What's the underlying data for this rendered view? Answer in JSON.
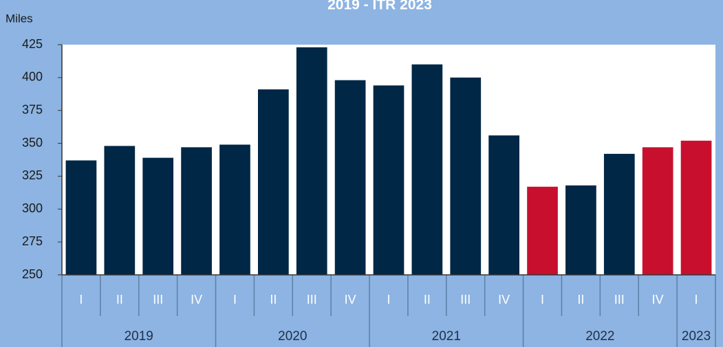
{
  "chart_data": {
    "type": "bar",
    "title": "2019 - ITR 2023",
    "y_label": "Miles",
    "categories": [
      "I",
      "II",
      "III",
      "IV",
      "I",
      "II",
      "III",
      "IV",
      "I",
      "II",
      "III",
      "IV",
      "I",
      "II",
      "III",
      "IV",
      "I"
    ],
    "years": [
      "2019",
      null,
      null,
      null,
      "2020",
      null,
      null,
      null,
      "2021",
      null,
      null,
      null,
      "2022",
      null,
      null,
      null,
      "2023"
    ],
    "values": [
      337,
      348,
      339,
      347,
      349,
      391,
      423,
      398,
      394,
      410,
      400,
      356,
      317,
      318,
      342,
      347,
      352
    ],
    "colors": [
      "#002746",
      "#002746",
      "#002746",
      "#002746",
      "#002746",
      "#002746",
      "#002746",
      "#002746",
      "#002746",
      "#002746",
      "#002746",
      "#002746",
      "#c8102e",
      "#002746",
      "#002746",
      "#c8102e",
      "#c8102e"
    ],
    "ylim": [
      250,
      425
    ],
    "yticks": [
      250,
      275,
      300,
      325,
      350,
      375,
      400,
      425
    ],
    "grid": false
  }
}
